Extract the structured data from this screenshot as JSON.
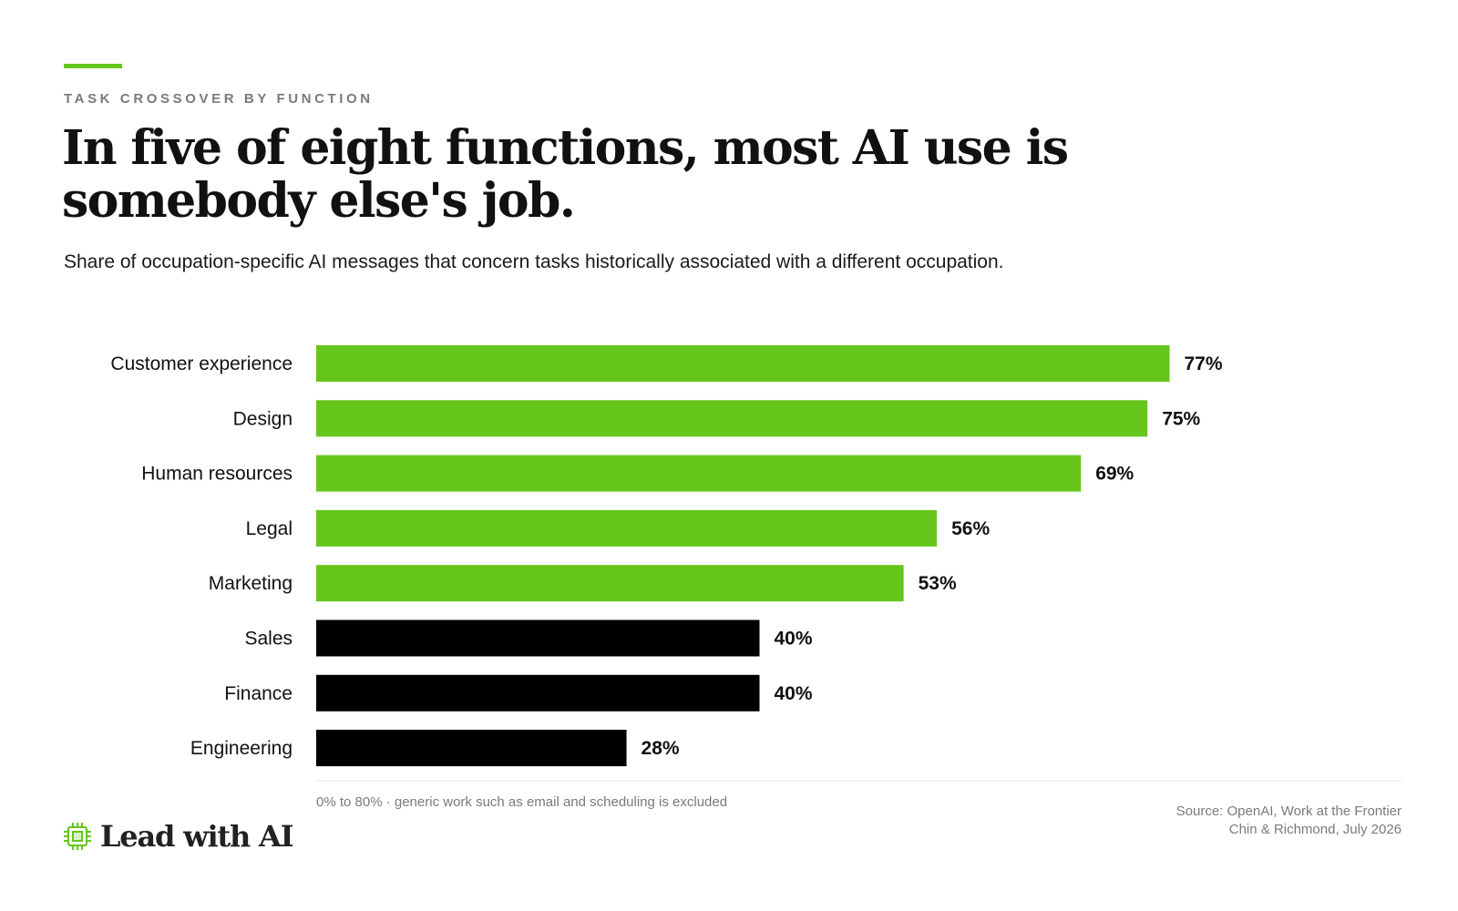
{
  "eyebrow": "TASK CROSSOVER BY FUNCTION",
  "title": "In five of eight functions, most AI use is somebody else's job.",
  "subtitle": "Share of occupation-specific AI messages that concern tasks historically associated with a different occupation.",
  "footnote": "0% to 80%  ·  generic work such as email and scheduling is excluded",
  "source": {
    "line1": "Source: OpenAI, Work at the Frontier",
    "line2": "Chin & Richmond, July 2026"
  },
  "logo": {
    "text": "Lead with AI",
    "icon": "chip-icon"
  },
  "colors": {
    "accent": "#66c61c",
    "majority": "#66c61c",
    "minority": "#000000",
    "muted": "#7a7a7a"
  },
  "chart_data": {
    "type": "bar",
    "orientation": "horizontal",
    "categories": [
      "Customer experience",
      "Design",
      "Human resources",
      "Legal",
      "Marketing",
      "Sales",
      "Finance",
      "Engineering"
    ],
    "values": [
      77,
      75,
      69,
      56,
      53,
      40,
      40,
      28
    ],
    "value_labels": [
      "77%",
      "75%",
      "69%",
      "56%",
      "53%",
      "40%",
      "40%",
      "28%"
    ],
    "xlim": [
      0,
      80
    ],
    "highlight_threshold": 50,
    "grid": false
  }
}
